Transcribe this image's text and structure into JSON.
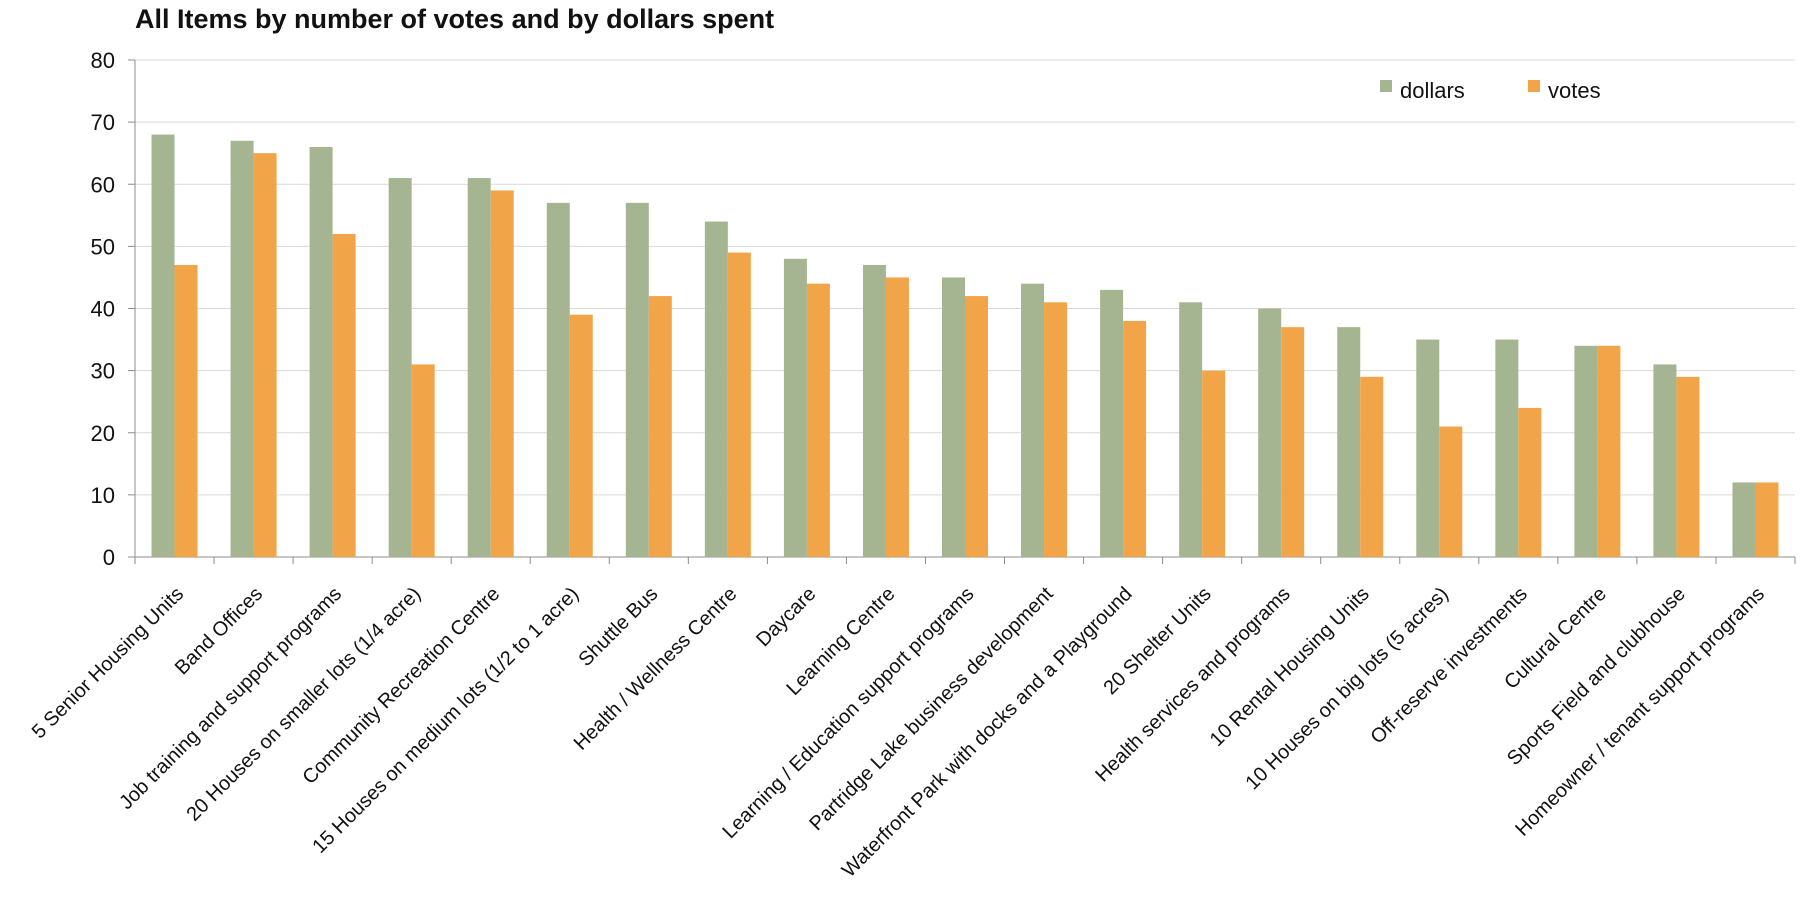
{
  "chart_data": {
    "type": "bar",
    "title": "All Items by number of votes and by dollars spent",
    "xlabel": "",
    "ylabel": "",
    "ylim": [
      0,
      80
    ],
    "yticks": [
      "0",
      "10",
      "20",
      "30",
      "40",
      "50",
      "60",
      "70",
      "80"
    ],
    "grid": true,
    "legend_position": "top-right",
    "categories": [
      "5 Senior Housing Units",
      "Band Offices",
      "Job training and support programs",
      "20 Houses on smaller lots (1/4 acre)",
      "Community Recreation Centre",
      "15 Houses on medium lots  (1/2 to 1 acre)",
      "Shuttle Bus",
      "Health / Wellness Centre",
      "Daycare",
      "Learning Centre",
      "Learning / Education support programs",
      "Partridge Lake business development",
      "Waterfront Park with docks and a Playground",
      "20 Shelter Units",
      "Health services and programs",
      "10 Rental Housing Units",
      "10  Houses on big lots (5 acres)",
      "Off-reserve investments",
      "Cultural Centre",
      "Sports Field and clubhouse",
      "Homeowner / tenant support programs"
    ],
    "series": [
      {
        "name": "dollars",
        "color": "#a6b591",
        "values": [
          68,
          67,
          66,
          61,
          61,
          57,
          57,
          54,
          48,
          47,
          45,
          44,
          43,
          41,
          40,
          37,
          35,
          35,
          34,
          31,
          12
        ]
      },
      {
        "name": "votes",
        "color": "#f2a548",
        "values": [
          47,
          65,
          52,
          31,
          59,
          39,
          42,
          49,
          44,
          45,
          42,
          41,
          38,
          30,
          37,
          29,
          21,
          24,
          34,
          29,
          12
        ]
      }
    ]
  }
}
